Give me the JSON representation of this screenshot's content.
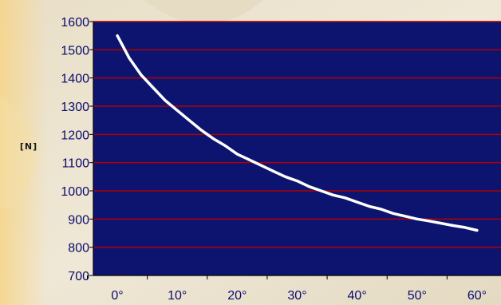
{
  "chart_data": {
    "type": "line",
    "title": "",
    "xlabel": "",
    "ylabel": "[N]",
    "x": [
      0,
      2,
      4,
      6,
      8,
      10,
      12,
      14,
      16,
      18,
      20,
      22,
      24,
      26,
      28,
      30,
      32,
      34,
      36,
      38,
      40,
      42,
      44,
      46,
      48,
      50,
      52,
      54,
      56,
      58,
      60
    ],
    "x_tick_values": [
      0,
      10,
      20,
      30,
      40,
      50,
      60
    ],
    "x_tick_labels": [
      "0°",
      "10°",
      "20°",
      "30°",
      "40°",
      "50°",
      "60°"
    ],
    "y_tick_values": [
      700,
      800,
      900,
      1000,
      1100,
      1200,
      1300,
      1400,
      1500,
      1600
    ],
    "y_tick_labels": [
      "700",
      "800",
      "900",
      "1000",
      "1100",
      "1200",
      "1300",
      "1400",
      "1500",
      "1600"
    ],
    "ylim": [
      700,
      1600
    ],
    "xlim": [
      -4,
      64
    ],
    "series": [
      {
        "values": [
          1550,
          1470,
          1410,
          1365,
          1320,
          1285,
          1250,
          1215,
          1185,
          1160,
          1130,
          1110,
          1090,
          1070,
          1050,
          1035,
          1015,
          1000,
          985,
          975,
          960,
          945,
          935,
          920,
          910,
          900,
          893,
          885,
          877,
          870,
          860
        ],
        "color": "#ffffff"
      }
    ],
    "grid": "horizontal",
    "colors": {
      "plot_background": "#0d1470",
      "gridline": "#b00000",
      "axis": "#000000",
      "tick_label": "#0a0a6e"
    }
  }
}
